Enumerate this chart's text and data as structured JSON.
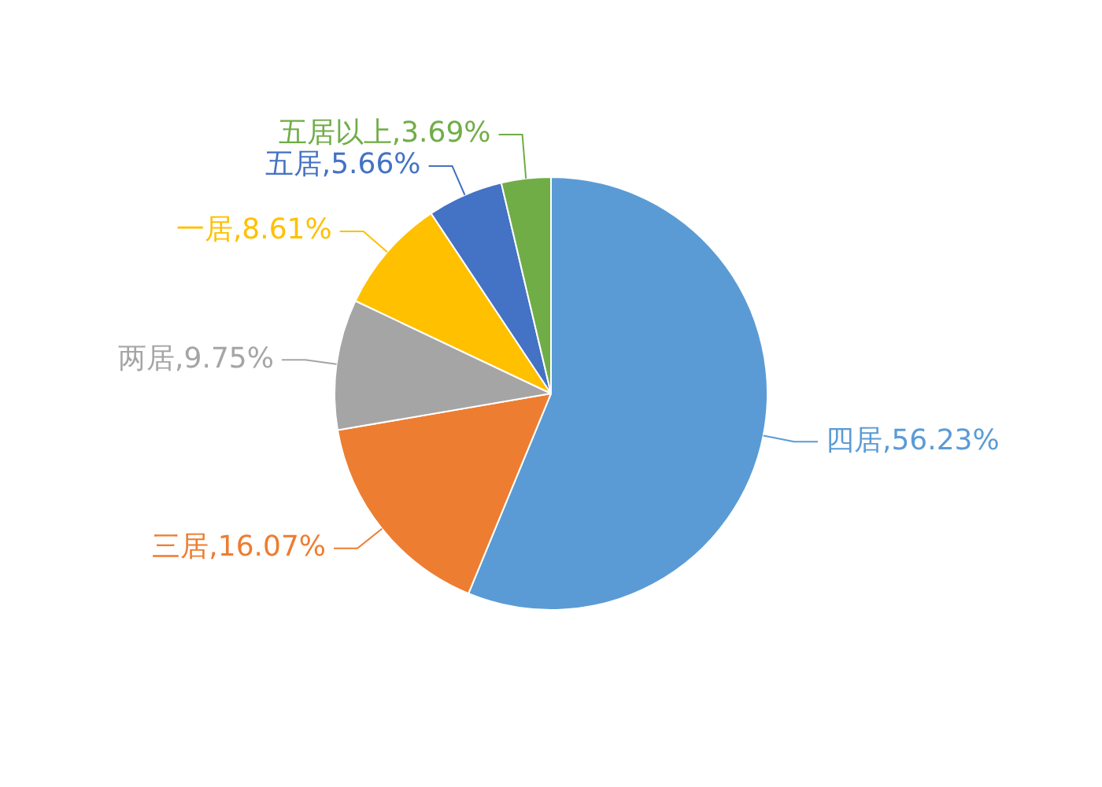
{
  "chart_data": {
    "type": "pie",
    "categories": [
      "四居",
      "三居",
      "两居",
      "一居",
      "五居",
      "五居以上"
    ],
    "values": [
      56.23,
      16.07,
      9.75,
      8.61,
      5.66,
      3.69
    ],
    "value_labels": [
      "56.23%",
      "16.07%",
      "9.75%",
      "8.61%",
      "5.66%",
      "3.69%"
    ],
    "colors": [
      "#5b9bd5",
      "#ed7d31",
      "#a5a5a5",
      "#ffc000",
      "#4472c4",
      "#70ad47"
    ],
    "legend": false
  }
}
